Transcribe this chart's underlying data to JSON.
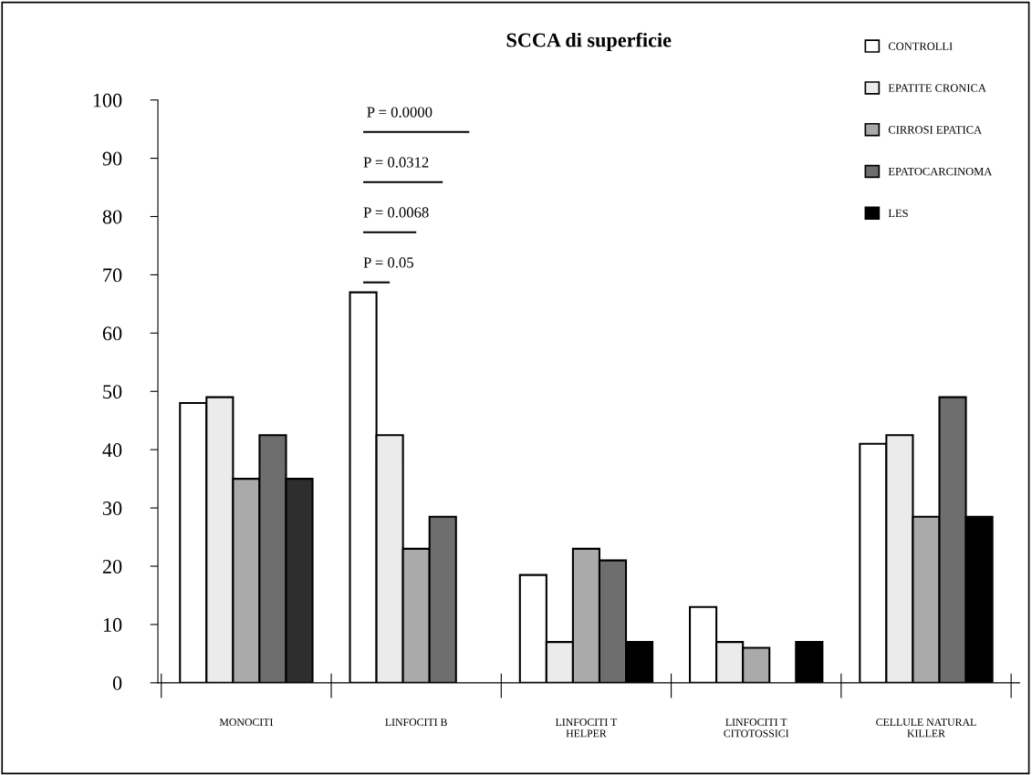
{
  "chart_data": {
    "type": "bar",
    "title": "SCCA di superficie",
    "categories": [
      "MONOCITI",
      "LINFOCITI B",
      "LINFOCITI T\nHELPER",
      "LINFOCITI T\nCITOTOSSICI",
      "CELLULE NATURAL\nKILLER"
    ],
    "series": [
      {
        "name": "CONTROLLI",
        "color": "#ffffff",
        "values": [
          48,
          67,
          18.5,
          13,
          41
        ]
      },
      {
        "name": "EPATITE CRONICA",
        "color": "#ebebeb",
        "values": [
          49,
          42.5,
          7,
          7,
          42.5
        ]
      },
      {
        "name": "CIRROSI EPATICA",
        "color": "#aaaaaa",
        "values": [
          35,
          23,
          23,
          6,
          28.5
        ]
      },
      {
        "name": "EPATOCARCINOMA",
        "color": "#6e6e6e",
        "values": [
          42.5,
          28.5,
          21,
          null,
          49
        ]
      },
      {
        "name": "LES",
        "color": "#000000",
        "colors": [
          "#2e2e2e",
          "#000000",
          "#000000",
          "#000000",
          "#000000"
        ],
        "values": [
          35,
          null,
          7,
          7,
          28.5
        ]
      }
    ],
    "ylim": [
      0,
      100
    ],
    "yticks": [
      0,
      10,
      20,
      30,
      40,
      50,
      60,
      70,
      80,
      90,
      100
    ],
    "grid": false,
    "legend": "top right",
    "annotations": [
      "P = 0.0000",
      "P = 0.0312",
      "P = 0.0068",
      "P = 0.05"
    ]
  }
}
